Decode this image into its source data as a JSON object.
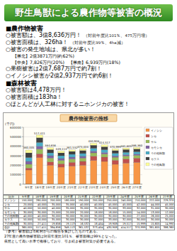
{
  "header": {
    "title": "野生鳥獣による農作物等被害の概況"
  },
  "sections": [
    {
      "heading": "■農作物被害",
      "items": [
        {
          "text": "○被害額は、3億8,636万円！",
          "note": "（対前年度比101％、475万円増）"
        },
        {
          "text": "○被害面積は、326ha！",
          "note": "（対前年度比99％、4ha減）"
        },
        {
          "text": "○被害の発生地域は、県北が多い！",
          "sub": [
            "【県北】2億3871万円(約62%)",
            "【中央】7,826万円(20%)　【県南】6,939万円(18%)"
          ]
        },
        {
          "text": "○果樹被害は2億7,687万円で約7割！"
        },
        {
          "text": "○イノシシ被害が2億2,937万円で約6割！"
        }
      ]
    },
    {
      "heading": "■森林被害",
      "items": [
        {
          "text": "○被害額は4,478万円！"
        },
        {
          "text": "○被害面積は183ha！"
        },
        {
          "text": "○ほとんどが人工林に対するニホンジカの被害！"
        }
      ]
    }
  ],
  "chart_data": {
    "type": "bar",
    "title": "農作物被害の推移",
    "ylabel": "(千円)",
    "categories": [
      "9年度",
      "18年度",
      "19年度",
      "20年度",
      "21年度",
      "22年度",
      "23年度",
      "24年度",
      "25年度",
      "26年度",
      "27年度"
    ],
    "series": [
      {
        "name": "イノシシ",
        "color": "#f79646",
        "values": [
          150000,
          280000,
          200000,
          180000,
          190000,
          200000,
          250000,
          240000,
          210000,
          222000,
          229370
        ]
      },
      {
        "name": "シカ",
        "color": "#c0504d",
        "values": [
          20000,
          40000,
          35000,
          35000,
          40000,
          40000,
          45000,
          45000,
          42000,
          44000,
          45000
        ]
      },
      {
        "name": "サル",
        "color": "#9bbb59",
        "values": [
          40000,
          50000,
          40000,
          35000,
          35000,
          35000,
          35000,
          33000,
          32000,
          31000,
          30000
        ]
      },
      {
        "name": "カモシカ",
        "color": "#8064a2",
        "values": [
          30000,
          30000,
          25000,
          20000,
          20000,
          18000,
          18000,
          15000,
          14000,
          13000,
          12000
        ]
      },
      {
        "name": "その他獣類",
        "color": "#4bacc6",
        "values": [
          40000,
          40000,
          30000,
          30000,
          30000,
          30000,
          30000,
          30000,
          27000,
          26000,
          25000
        ]
      },
      {
        "name": "カラス",
        "color": "#404040",
        "values": [
          50000,
          50000,
          35000,
          30000,
          30000,
          32000,
          33000,
          32000,
          30000,
          30000,
          30000
        ]
      },
      {
        "name": "その他鳥類",
        "color": "#ffff99",
        "values": [
          30005,
          27411,
          19656,
          19113,
          16532,
          18404,
          19908,
          19517,
          15999,
          15605,
          14990
        ]
      }
    ],
    "totals": [
      360005,
      517411,
      384656,
      349113,
      361532,
      373404,
      430908,
      414517,
      370999,
      381605,
      386360
    ],
    "total_labels": [
      "360,005",
      "517,411",
      "384,656",
      "349,113",
      "361,532",
      "373,404",
      "430,908",
      "414,517",
      "370,999",
      "381,605",
      "386,360"
    ],
    "ylim": [
      0,
      600000
    ],
    "yticks": [
      0,
      100000,
      200000,
      300000,
      400000,
      500000,
      600000
    ],
    "stacked": true,
    "grid": true,
    "legend": "right"
  },
  "table": {
    "header": [
      "区分",
      "9年度",
      "18年度",
      "19年度",
      "20年度",
      "21年度",
      "22年度",
      "23年度",
      "24年度",
      "25年度",
      "26年度",
      "27年度"
    ],
    "rows": [
      [
        "イノシシ",
        "150,000",
        "280,000",
        "200,000",
        "180,000",
        "190,000",
        "200,000",
        "250,000",
        "240,000",
        "210,000",
        "222,000",
        "229,370"
      ],
      [
        "シカ",
        "20,000",
        "40,000",
        "35,000",
        "35,000",
        "40,000",
        "40,000",
        "45,000",
        "45,000",
        "42,000",
        "44,000",
        "45,000"
      ],
      [
        "サル",
        "40,000",
        "50,000",
        "40,000",
        "35,000",
        "35,000",
        "35,000",
        "35,000",
        "33,000",
        "32,000",
        "31,000",
        "30,000"
      ],
      [
        "カモシカ",
        "30,000",
        "30,000",
        "25,000",
        "20,000",
        "20,000",
        "18,000",
        "18,000",
        "15,000",
        "14,000",
        "13,000",
        "12,000"
      ],
      [
        "その他獣類",
        "40,000",
        "40,000",
        "30,000",
        "30,000",
        "30,000",
        "30,000",
        "30,000",
        "30,000",
        "27,000",
        "26,000",
        "25,000"
      ],
      [
        "カラス",
        "50,000",
        "50,000",
        "35,000",
        "30,000",
        "30,000",
        "32,000",
        "33,000",
        "32,000",
        "30,000",
        "30,000",
        "30,000"
      ],
      [
        "その他鳥類",
        "30,005",
        "27,411",
        "19,656",
        "19,113",
        "16,532",
        "18,404",
        "19,908",
        "19,517",
        "15,999",
        "15,605",
        "14,990"
      ],
      [
        "合計",
        "360,005",
        "517,411",
        "384,656",
        "349,113",
        "361,532",
        "373,404",
        "430,908",
        "414,517",
        "370,999",
        "381,605",
        "386,360"
      ]
    ]
  },
  "notes": [
    "（参考）被害額は市町村からの報告を集計したものである。",
    "27年度の農作物被害額は対前年度比101％、被害面積は99％となった。",
    "依然として高い水準で推移しており、引き続き被害対策が必要である。"
  ]
}
